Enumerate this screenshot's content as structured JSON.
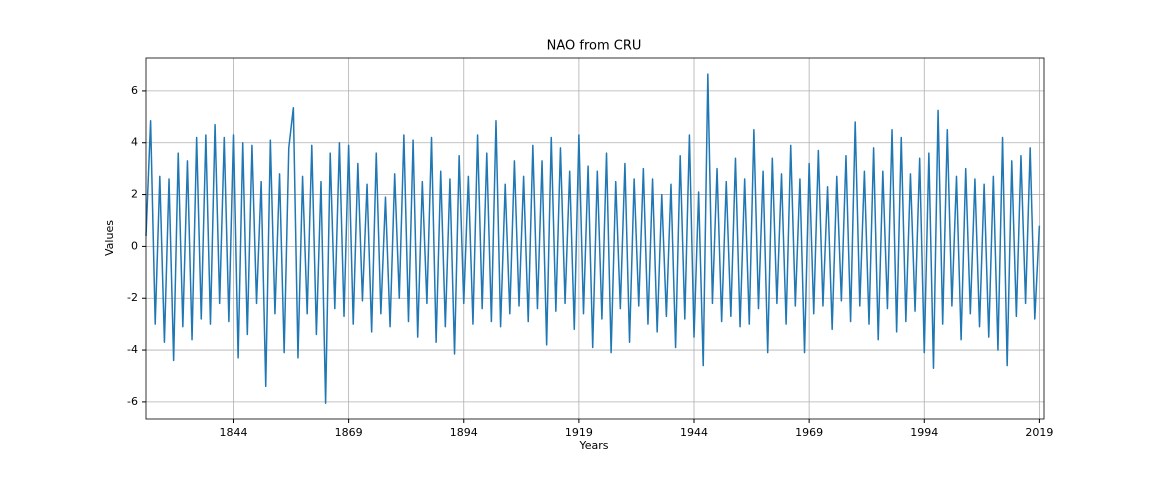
{
  "chart_data": {
    "type": "line",
    "title": "NAO from CRU",
    "xlabel": "Years",
    "ylabel": "Values",
    "x": [
      1825,
      1826,
      1827,
      1828,
      1829,
      1830,
      1831,
      1832,
      1833,
      1834,
      1835,
      1836,
      1837,
      1838,
      1839,
      1840,
      1841,
      1842,
      1843,
      1844,
      1845,
      1846,
      1847,
      1848,
      1849,
      1850,
      1851,
      1852,
      1853,
      1854,
      1855,
      1856,
      1857,
      1858,
      1859,
      1860,
      1861,
      1862,
      1863,
      1864,
      1865,
      1866,
      1867,
      1868,
      1869,
      1870,
      1871,
      1872,
      1873,
      1874,
      1875,
      1876,
      1877,
      1878,
      1879,
      1880,
      1881,
      1882,
      1883,
      1884,
      1885,
      1886,
      1887,
      1888,
      1889,
      1890,
      1891,
      1892,
      1893,
      1894,
      1895,
      1896,
      1897,
      1898,
      1899,
      1900,
      1901,
      1902,
      1903,
      1904,
      1905,
      1906,
      1907,
      1908,
      1909,
      1910,
      1911,
      1912,
      1913,
      1914,
      1915,
      1916,
      1917,
      1918,
      1919,
      1920,
      1921,
      1922,
      1923,
      1924,
      1925,
      1926,
      1927,
      1928,
      1929,
      1930,
      1931,
      1932,
      1933,
      1934,
      1935,
      1936,
      1937,
      1938,
      1939,
      1940,
      1941,
      1942,
      1943,
      1944,
      1945,
      1946,
      1947,
      1948,
      1949,
      1950,
      1951,
      1952,
      1953,
      1954,
      1955,
      1956,
      1957,
      1958,
      1959,
      1960,
      1961,
      1962,
      1963,
      1964,
      1965,
      1966,
      1967,
      1968,
      1969,
      1970,
      1971,
      1972,
      1973,
      1974,
      1975,
      1976,
      1977,
      1978,
      1979,
      1980,
      1981,
      1982,
      1983,
      1984,
      1985,
      1986,
      1987,
      1988,
      1989,
      1990,
      1991,
      1992,
      1993,
      1994,
      1995,
      1996,
      1997,
      1998,
      1999,
      2000,
      2001,
      2002,
      2003,
      2004,
      2005,
      2006,
      2007,
      2008,
      2009,
      2010,
      2011,
      2012,
      2013,
      2014,
      2015,
      2016,
      2017,
      2018,
      2019
    ],
    "series": [
      {
        "name": "NAO",
        "color": "#1f77b4",
        "values": [
          0.4,
          4.85,
          -3.0,
          2.7,
          -3.7,
          2.6,
          -4.4,
          3.6,
          -3.1,
          3.3,
          -3.6,
          4.2,
          -2.8,
          4.3,
          -3.0,
          4.7,
          -2.2,
          4.2,
          -2.9,
          4.3,
          -4.3,
          4.0,
          -3.4,
          3.9,
          -2.2,
          2.5,
          -5.4,
          4.1,
          -2.6,
          2.8,
          -4.1,
          3.8,
          5.35,
          -4.3,
          2.7,
          -2.6,
          3.9,
          -3.4,
          2.5,
          -6.05,
          3.6,
          -2.4,
          4.0,
          -2.7,
          3.9,
          -3.0,
          3.2,
          -2.1,
          2.4,
          -3.3,
          3.6,
          -2.6,
          1.9,
          -3.1,
          2.8,
          -2.0,
          4.3,
          -2.9,
          4.1,
          -3.5,
          2.5,
          -2.2,
          4.2,
          -3.7,
          2.9,
          -3.1,
          2.6,
          -4.15,
          3.5,
          -2.2,
          2.7,
          -3.0,
          4.3,
          -2.4,
          3.6,
          -2.9,
          4.85,
          -3.1,
          2.4,
          -2.6,
          3.3,
          -2.3,
          2.7,
          -2.9,
          3.9,
          -2.4,
          3.3,
          -3.8,
          4.2,
          -2.5,
          3.8,
          -2.2,
          2.9,
          -3.2,
          4.3,
          -2.6,
          3.1,
          -3.9,
          2.9,
          -2.8,
          3.6,
          -4.1,
          2.5,
          -2.4,
          3.2,
          -3.7,
          2.6,
          -2.3,
          3.0,
          -3.0,
          2.6,
          -3.3,
          2.0,
          -2.7,
          2.4,
          -3.9,
          3.5,
          -2.8,
          4.3,
          -3.5,
          2.1,
          -4.6,
          6.65,
          -2.2,
          3.0,
          -2.9,
          2.5,
          -2.7,
          3.4,
          -3.1,
          2.6,
          -3.0,
          4.5,
          -2.4,
          2.9,
          -4.1,
          3.4,
          -2.2,
          2.8,
          -3.0,
          3.9,
          -2.3,
          2.6,
          -4.1,
          3.2,
          -2.6,
          3.7,
          -2.3,
          2.3,
          -3.2,
          2.7,
          -2.1,
          3.5,
          -2.9,
          4.8,
          -2.3,
          2.9,
          -3.0,
          3.8,
          -3.6,
          2.9,
          -2.4,
          4.5,
          -3.3,
          4.2,
          -2.9,
          2.8,
          -2.5,
          3.4,
          -4.1,
          3.6,
          -4.7,
          5.25,
          -3.0,
          4.5,
          -2.3,
          2.7,
          -3.6,
          3.0,
          -2.6,
          2.6,
          -3.1,
          2.4,
          -3.5,
          2.7,
          -4.0,
          4.2,
          -4.6,
          3.3,
          -2.7,
          3.5,
          -2.2,
          3.8,
          -2.8,
          0.8
        ]
      }
    ],
    "xlim": [
      1825,
      2020
    ],
    "xticks": [
      1844,
      1869,
      1894,
      1919,
      1944,
      1969,
      1994,
      2019
    ],
    "ylim": [
      -6.66,
      7.27
    ],
    "yticks": [
      -6,
      -4,
      -2,
      0,
      2,
      4,
      6
    ],
    "grid": true
  }
}
